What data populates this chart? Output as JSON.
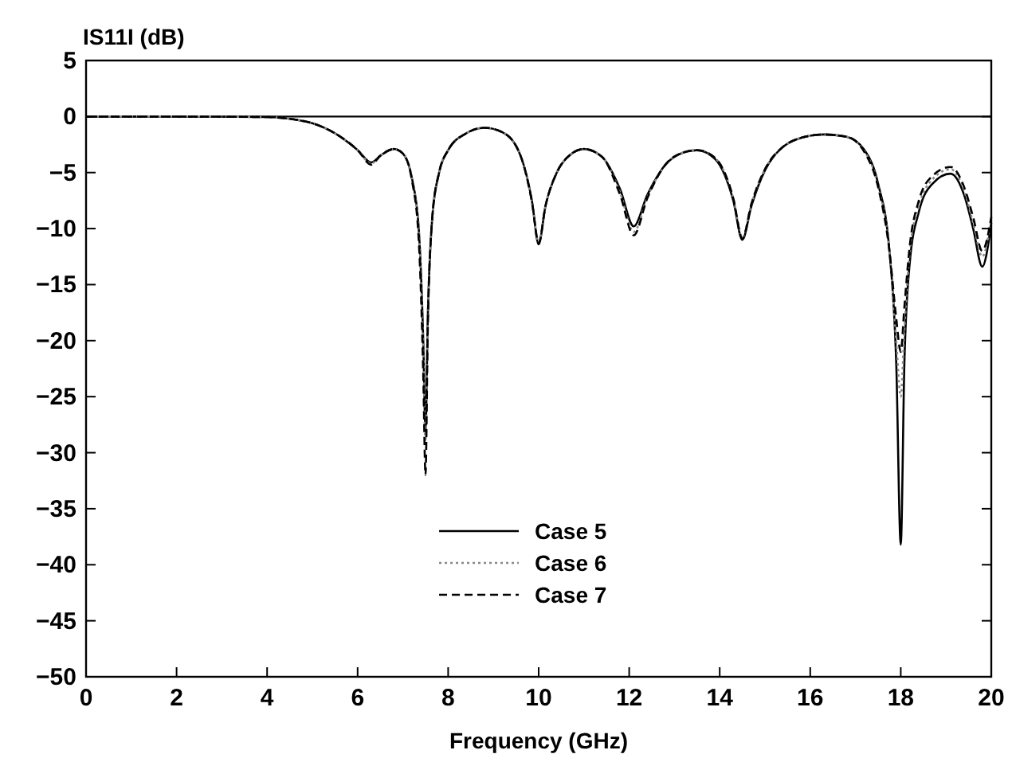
{
  "chart_data": {
    "type": "line",
    "xlabel": "Frequency (GHz)",
    "ylabel": "IS11I (dB)",
    "xlim": [
      0,
      20
    ],
    "ylim": [
      -50,
      5
    ],
    "xticks": [
      0,
      2,
      4,
      6,
      8,
      10,
      12,
      14,
      16,
      18,
      20
    ],
    "yticks": [
      5,
      0,
      -5,
      -10,
      -15,
      -20,
      -25,
      -30,
      -35,
      -40,
      -45,
      -50
    ],
    "grid": false,
    "legend": "bottom",
    "marker": "none",
    "ref_lines": [
      {
        "axis": "y",
        "value": 0,
        "color": "#000000"
      }
    ],
    "series": [
      {
        "name": "Case 5",
        "color": "#000000",
        "line_style": "solid",
        "x": [
          0,
          2,
          4,
          4.5,
          5,
          5.5,
          6,
          6.3,
          6.5,
          6.8,
          7.0,
          7.2,
          7.35,
          7.45,
          7.5,
          7.55,
          7.65,
          7.8,
          8.0,
          8.4,
          8.8,
          9.2,
          9.6,
          9.85,
          10.0,
          10.15,
          10.4,
          10.7,
          11.0,
          11.4,
          11.8,
          12.1,
          12.4,
          12.8,
          13.2,
          13.5,
          13.9,
          14.3,
          14.5,
          14.7,
          15.0,
          15.4,
          15.8,
          16.3,
          16.8,
          17.2,
          17.5,
          17.75,
          17.9,
          18.0,
          18.08,
          18.2,
          18.4,
          18.7,
          19.1,
          19.4,
          19.6,
          19.8,
          20
        ],
        "values": [
          0,
          0,
          -0.05,
          -0.2,
          -0.6,
          -1.5,
          -3.0,
          -4.1,
          -3.5,
          -2.9,
          -3.3,
          -5.5,
          -10,
          -20,
          -28,
          -18,
          -9,
          -5,
          -3,
          -1.5,
          -1.0,
          -1.4,
          -3.5,
          -7.5,
          -11.4,
          -8,
          -5,
          -3.4,
          -2.9,
          -3.6,
          -6.5,
          -9.8,
          -7,
          -4.3,
          -3.2,
          -3.0,
          -3.8,
          -7.5,
          -11.0,
          -8,
          -4.8,
          -2.7,
          -1.9,
          -1.6,
          -1.8,
          -3,
          -6,
          -12,
          -22,
          -38.2,
          -22,
          -13,
          -8.5,
          -6,
          -5.1,
          -7,
          -10,
          -13.4,
          -9.5
        ]
      },
      {
        "name": "Case 6",
        "color": "#888888",
        "line_style": "dotted",
        "x": [
          0,
          2,
          4,
          4.5,
          5,
          5.5,
          6,
          6.3,
          6.5,
          6.8,
          7.0,
          7.2,
          7.35,
          7.45,
          7.5,
          7.55,
          7.65,
          7.8,
          8.0,
          8.4,
          8.8,
          9.2,
          9.6,
          9.85,
          10.0,
          10.15,
          10.4,
          10.7,
          11.0,
          11.4,
          11.8,
          12.1,
          12.4,
          12.8,
          13.2,
          13.5,
          13.9,
          14.3,
          14.5,
          14.7,
          15.0,
          15.4,
          15.8,
          16.3,
          16.8,
          17.2,
          17.5,
          17.75,
          17.9,
          18.0,
          18.08,
          18.2,
          18.4,
          18.7,
          19.1,
          19.4,
          19.6,
          19.8,
          20
        ],
        "values": [
          0,
          0,
          -0.05,
          -0.2,
          -0.6,
          -1.5,
          -3.0,
          -4.2,
          -3.5,
          -2.9,
          -3.3,
          -5.6,
          -10,
          -21,
          -29,
          -18,
          -9,
          -5,
          -3,
          -1.5,
          -1.0,
          -1.4,
          -3.5,
          -7.6,
          -11.2,
          -8,
          -5,
          -3.4,
          -2.9,
          -3.6,
          -6.8,
          -10.3,
          -7.2,
          -4.3,
          -3.2,
          -3.0,
          -3.7,
          -7.3,
          -10.8,
          -7.8,
          -4.7,
          -2.7,
          -1.9,
          -1.6,
          -1.8,
          -3.1,
          -6.2,
          -12,
          -20,
          -25,
          -19,
          -12,
          -8,
          -5.6,
          -4.7,
          -6.6,
          -9.5,
          -12.5,
          -9
        ]
      },
      {
        "name": "Case 7",
        "color": "#000000",
        "line_style": "dashed",
        "x": [
          0,
          2,
          4,
          4.5,
          5,
          5.5,
          6,
          6.3,
          6.5,
          6.8,
          7.0,
          7.2,
          7.35,
          7.45,
          7.5,
          7.55,
          7.65,
          7.8,
          8.0,
          8.4,
          8.8,
          9.2,
          9.6,
          9.85,
          10.0,
          10.15,
          10.4,
          10.7,
          11.0,
          11.4,
          11.8,
          12.1,
          12.4,
          12.8,
          13.2,
          13.5,
          13.9,
          14.3,
          14.5,
          14.7,
          15.0,
          15.4,
          15.8,
          16.3,
          16.8,
          17.2,
          17.5,
          17.75,
          17.9,
          18.0,
          18.08,
          18.2,
          18.4,
          18.7,
          19.1,
          19.4,
          19.6,
          19.8,
          20
        ],
        "values": [
          0,
          0,
          -0.05,
          -0.2,
          -0.6,
          -1.5,
          -3.0,
          -4.3,
          -3.5,
          -2.9,
          -3.3,
          -5.7,
          -11,
          -23,
          -32,
          -19,
          -9,
          -5,
          -3,
          -1.5,
          -1.0,
          -1.4,
          -3.5,
          -7.6,
          -11.3,
          -8,
          -5,
          -3.4,
          -2.9,
          -3.6,
          -7,
          -10.6,
          -7.3,
          -4.3,
          -3.2,
          -3.0,
          -3.7,
          -7.3,
          -10.9,
          -7.8,
          -4.7,
          -2.7,
          -1.9,
          -1.6,
          -1.8,
          -3.2,
          -6.3,
          -12,
          -18,
          -21,
          -17,
          -11.5,
          -7.5,
          -5.3,
          -4.5,
          -6.3,
          -9,
          -12,
          -9
        ]
      }
    ]
  }
}
